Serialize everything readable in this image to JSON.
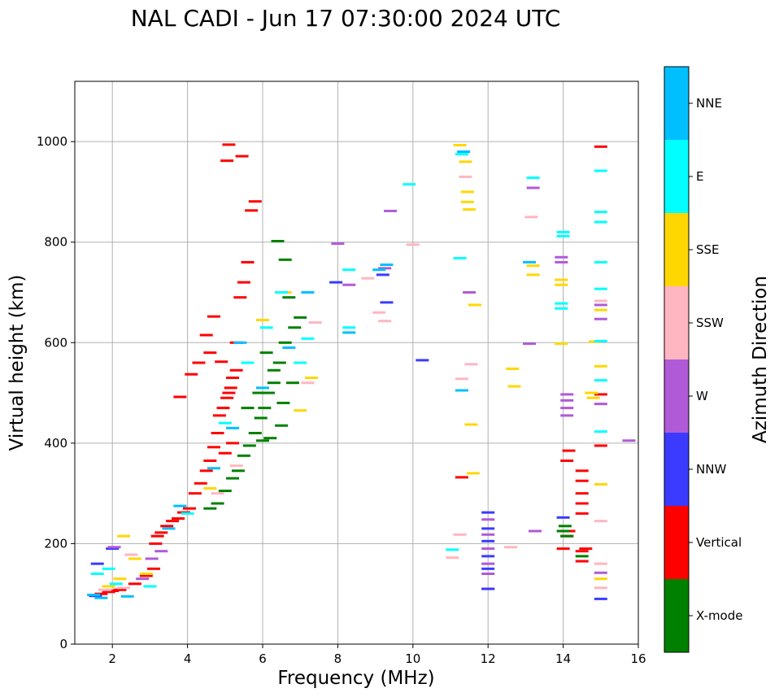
{
  "chart_data": {
    "type": "scatter",
    "title": "NAL CADI - Jun 17 07:30:00 2024 UTC",
    "xlabel": "Frequency (MHz)",
    "ylabel": "Virtual height (km)",
    "xlim": [
      1,
      16
    ],
    "ylim": [
      0,
      1120
    ],
    "xticks": [
      2,
      4,
      6,
      8,
      10,
      12,
      14,
      16
    ],
    "yticks": [
      0,
      200,
      400,
      600,
      800,
      1000
    ],
    "grid": true,
    "colorbar": {
      "label": "Azimuth Direction",
      "categories": [
        {
          "name": "X-mode",
          "color": "#008000"
        },
        {
          "name": "Vertical",
          "color": "#ff0000"
        },
        {
          "name": "NNW",
          "color": "#3b3bff"
        },
        {
          "name": "W",
          "color": "#b05ad8"
        },
        {
          "name": "SSW",
          "color": "#ffb6c1"
        },
        {
          "name": "SSE",
          "color": "#ffd700"
        },
        {
          "name": "E",
          "color": "#00ffff"
        },
        {
          "name": "NNE",
          "color": "#00bfff"
        }
      ]
    },
    "series": [
      {
        "name": "Vertical",
        "points": [
          [
            1.7,
            100
          ],
          [
            1.9,
            104
          ],
          [
            2.0,
            106
          ],
          [
            2.2,
            108
          ],
          [
            2.6,
            120
          ],
          [
            2.9,
            136
          ],
          [
            3.1,
            150
          ],
          [
            3.15,
            200
          ],
          [
            3.2,
            215
          ],
          [
            3.3,
            222
          ],
          [
            3.45,
            235
          ],
          [
            3.6,
            245
          ],
          [
            3.75,
            250
          ],
          [
            3.9,
            262
          ],
          [
            4.05,
            270
          ],
          [
            4.2,
            300
          ],
          [
            4.35,
            320
          ],
          [
            4.5,
            345
          ],
          [
            4.6,
            365
          ],
          [
            4.7,
            392
          ],
          [
            4.8,
            420
          ],
          [
            4.85,
            455
          ],
          [
            4.95,
            470
          ],
          [
            5.05,
            490
          ],
          [
            5.1,
            500
          ],
          [
            5.15,
            510
          ],
          [
            5.2,
            530
          ],
          [
            5.3,
            545
          ],
          [
            4.5,
            615
          ],
          [
            4.7,
            652
          ],
          [
            4.9,
            562
          ],
          [
            3.8,
            492
          ],
          [
            4.1,
            537
          ],
          [
            5.05,
            962
          ],
          [
            5.1,
            994
          ],
          [
            5.45,
            971
          ],
          [
            5.7,
            863
          ],
          [
            5.8,
            881
          ],
          [
            5.6,
            760
          ],
          [
            5.5,
            720
          ],
          [
            5.4,
            690
          ],
          [
            5.3,
            600
          ],
          [
            5.0,
            380
          ],
          [
            5.2,
            400
          ],
          [
            4.3,
            560
          ],
          [
            4.6,
            580
          ],
          [
            11.3,
            332
          ],
          [
            12.0,
            110
          ],
          [
            14.0,
            190
          ],
          [
            14.1,
            215
          ],
          [
            14.15,
            225
          ],
          [
            14.5,
            165
          ],
          [
            14.5,
            185
          ],
          [
            14.5,
            260
          ],
          [
            14.5,
            280
          ],
          [
            14.5,
            300
          ],
          [
            14.5,
            325
          ],
          [
            14.5,
            345
          ],
          [
            14.1,
            365
          ],
          [
            14.15,
            385
          ],
          [
            14.6,
            190
          ],
          [
            15.0,
            395
          ],
          [
            15.0,
            497
          ],
          [
            15.0,
            990
          ]
        ]
      },
      {
        "name": "X-mode",
        "points": [
          [
            4.6,
            270
          ],
          [
            4.8,
            280
          ],
          [
            5.0,
            305
          ],
          [
            5.2,
            330
          ],
          [
            5.35,
            345
          ],
          [
            5.5,
            375
          ],
          [
            5.65,
            395
          ],
          [
            5.8,
            420
          ],
          [
            5.95,
            450
          ],
          [
            6.05,
            470
          ],
          [
            6.15,
            500
          ],
          [
            6.3,
            520
          ],
          [
            6.45,
            560
          ],
          [
            6.6,
            600
          ],
          [
            6.85,
            630
          ],
          [
            7.0,
            650
          ],
          [
            6.0,
            405
          ],
          [
            6.2,
            410
          ],
          [
            6.5,
            435
          ],
          [
            6.6,
            765
          ],
          [
            6.4,
            802
          ],
          [
            6.7,
            690
          ],
          [
            6.1,
            580
          ],
          [
            6.3,
            545
          ],
          [
            6.55,
            480
          ],
          [
            6.8,
            520
          ],
          [
            14.0,
            225
          ],
          [
            14.1,
            215
          ],
          [
            14.05,
            235
          ],
          [
            14.5,
            175
          ],
          [
            5.6,
            470
          ],
          [
            5.9,
            500
          ]
        ]
      },
      {
        "name": "NNW",
        "points": [
          [
            1.55,
            96
          ],
          [
            1.6,
            160
          ],
          [
            2.0,
            190
          ],
          [
            12.0,
            110
          ],
          [
            12.0,
            150
          ],
          [
            12.0,
            175
          ],
          [
            12.0,
            205
          ],
          [
            12.0,
            230
          ],
          [
            12.0,
            262
          ],
          [
            14.0,
            252
          ],
          [
            15.0,
            90
          ],
          [
            10.25,
            565
          ],
          [
            7.95,
            720
          ],
          [
            9.2,
            735
          ],
          [
            9.3,
            680
          ]
        ]
      },
      {
        "name": "W",
        "points": [
          [
            2.05,
            193
          ],
          [
            2.8,
            130
          ],
          [
            3.05,
            170
          ],
          [
            3.3,
            185
          ],
          [
            8.0,
            797
          ],
          [
            8.3,
            715
          ],
          [
            9.25,
            748
          ],
          [
            11.5,
            700
          ],
          [
            12.0,
            140
          ],
          [
            12.0,
            160
          ],
          [
            12.0,
            190
          ],
          [
            12.0,
            218
          ],
          [
            12.0,
            248
          ],
          [
            13.1,
            598
          ],
          [
            13.2,
            908
          ],
          [
            13.25,
            225
          ],
          [
            13.95,
            760
          ],
          [
            13.95,
            770
          ],
          [
            14.1,
            455
          ],
          [
            14.1,
            470
          ],
          [
            14.1,
            485
          ],
          [
            14.1,
            497
          ],
          [
            15.0,
            142
          ],
          [
            15.0,
            478
          ],
          [
            15.0,
            647
          ],
          [
            15.0,
            675
          ],
          [
            15.75,
            405
          ],
          [
            9.4,
            862
          ]
        ]
      },
      {
        "name": "SSW",
        "points": [
          [
            1.8,
            108
          ],
          [
            2.3,
            112
          ],
          [
            2.5,
            178
          ],
          [
            4.8,
            300
          ],
          [
            5.3,
            355
          ],
          [
            7.2,
            520
          ],
          [
            7.4,
            640
          ],
          [
            8.8,
            728
          ],
          [
            9.1,
            660
          ],
          [
            9.25,
            643
          ],
          [
            10.0,
            795
          ],
          [
            11.05,
            172
          ],
          [
            11.25,
            218
          ],
          [
            11.3,
            528
          ],
          [
            11.4,
            930
          ],
          [
            11.55,
            557
          ],
          [
            12.6,
            193
          ],
          [
            13.15,
            850
          ],
          [
            15.0,
            112
          ],
          [
            15.0,
            160
          ],
          [
            15.0,
            245
          ],
          [
            15.0,
            683
          ]
        ]
      },
      {
        "name": "SSE",
        "points": [
          [
            1.9,
            115
          ],
          [
            2.2,
            130
          ],
          [
            2.3,
            215
          ],
          [
            2.6,
            170
          ],
          [
            2.9,
            140
          ],
          [
            4.6,
            310
          ],
          [
            6.0,
            645
          ],
          [
            6.6,
            700
          ],
          [
            7.3,
            530
          ],
          [
            7.0,
            465
          ],
          [
            11.25,
            993
          ],
          [
            11.4,
            960
          ],
          [
            11.45,
            900
          ],
          [
            11.45,
            880
          ],
          [
            11.5,
            865
          ],
          [
            11.55,
            437
          ],
          [
            11.6,
            340
          ],
          [
            11.65,
            675
          ],
          [
            12.65,
            548
          ],
          [
            12.7,
            513
          ],
          [
            13.2,
            735
          ],
          [
            13.2,
            753
          ],
          [
            13.95,
            715
          ],
          [
            13.95,
            725
          ],
          [
            13.95,
            598
          ],
          [
            14.75,
            500
          ],
          [
            14.8,
            490
          ],
          [
            14.85,
            602
          ],
          [
            15.0,
            130
          ],
          [
            15.0,
            318
          ],
          [
            15.0,
            553
          ],
          [
            15.0,
            665
          ]
        ]
      },
      {
        "name": "E",
        "points": [
          [
            1.6,
            140
          ],
          [
            1.9,
            150
          ],
          [
            2.1,
            120
          ],
          [
            3.0,
            115
          ],
          [
            4.0,
            260
          ],
          [
            5.0,
            440
          ],
          [
            5.6,
            560
          ],
          [
            6.1,
            630
          ],
          [
            6.5,
            700
          ],
          [
            7.0,
            560
          ],
          [
            7.2,
            608
          ],
          [
            8.3,
            630
          ],
          [
            8.3,
            745
          ],
          [
            9.9,
            915
          ],
          [
            11.05,
            188
          ],
          [
            11.25,
            768
          ],
          [
            11.3,
            975
          ],
          [
            13.2,
            928
          ],
          [
            13.95,
            678
          ],
          [
            13.95,
            668
          ],
          [
            14.0,
            812
          ],
          [
            14.0,
            820
          ],
          [
            15.0,
            423
          ],
          [
            15.0,
            525
          ],
          [
            15.0,
            603
          ],
          [
            15.0,
            707
          ],
          [
            15.0,
            760
          ],
          [
            15.0,
            840
          ],
          [
            15.0,
            860
          ],
          [
            15.0,
            942
          ]
        ]
      },
      {
        "name": "NNE",
        "points": [
          [
            1.5,
            98
          ],
          [
            1.7,
            92
          ],
          [
            2.4,
            95
          ],
          [
            3.5,
            230
          ],
          [
            3.8,
            275
          ],
          [
            4.7,
            350
          ],
          [
            5.2,
            430
          ],
          [
            5.4,
            600
          ],
          [
            6.0,
            510
          ],
          [
            6.7,
            590
          ],
          [
            7.2,
            700
          ],
          [
            8.3,
            620
          ],
          [
            9.1,
            745
          ],
          [
            9.3,
            755
          ],
          [
            11.3,
            505
          ],
          [
            11.35,
            980
          ],
          [
            13.1,
            760
          ]
        ]
      }
    ]
  }
}
